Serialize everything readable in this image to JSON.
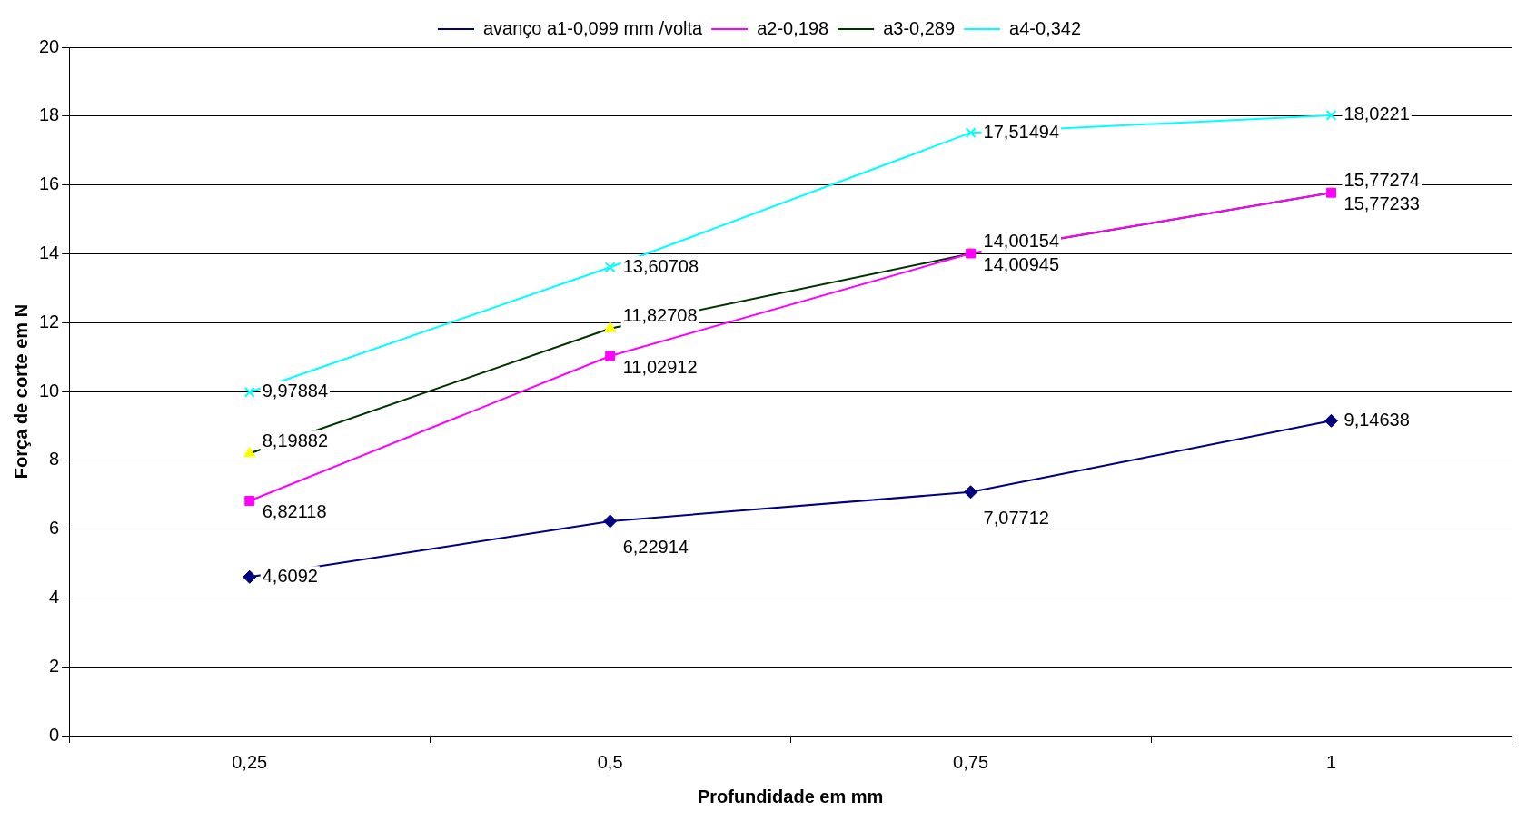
{
  "chart_data": {
    "type": "line",
    "xlabel": "Profundidade em mm",
    "ylabel": "Força de corte em N",
    "categories": [
      "0,25",
      "0,5",
      "0,75",
      "1"
    ],
    "series": [
      {
        "name": "avanço a1-0,099 mm /volta",
        "color": "#000080",
        "marker": "diamond",
        "values": [
          4.6092,
          6.22914,
          7.07712,
          9.14638
        ],
        "value_labels": [
          "4,6092",
          "6,22914",
          "7,07712",
          "9,14638"
        ]
      },
      {
        "name": "a2-0,198",
        "color": "#ff00ff",
        "marker": "square",
        "values": [
          6.82118,
          11.02912,
          14.00945,
          15.77233
        ],
        "value_labels": [
          "6,82118",
          "11,02912",
          "14,00945",
          "15,77233"
        ]
      },
      {
        "name": "a3-0,289",
        "color": "#003300",
        "colors": [
          "#ffff00",
          "#ffff00",
          "#ffff00",
          "#ffff00"
        ],
        "marker": "triangle",
        "values": [
          8.19882,
          11.82708,
          14.00154,
          15.77274
        ],
        "value_labels": [
          "8,19882",
          "11,82708",
          "14,00154",
          "15,77274"
        ]
      },
      {
        "name": "a4-0,342",
        "color": "#00ffff",
        "marker": "cross",
        "values": [
          9.97884,
          13.60708,
          17.51494,
          18.0221
        ],
        "value_labels": [
          "9,97884",
          "13,60708",
          "17,51494",
          "18,0221"
        ]
      }
    ],
    "ylim": [
      0,
      20
    ],
    "yticks": [
      0,
      2,
      4,
      6,
      8,
      10,
      12,
      14,
      16,
      18,
      20
    ],
    "grid": "y",
    "legend": "top",
    "line_style": "solid"
  }
}
